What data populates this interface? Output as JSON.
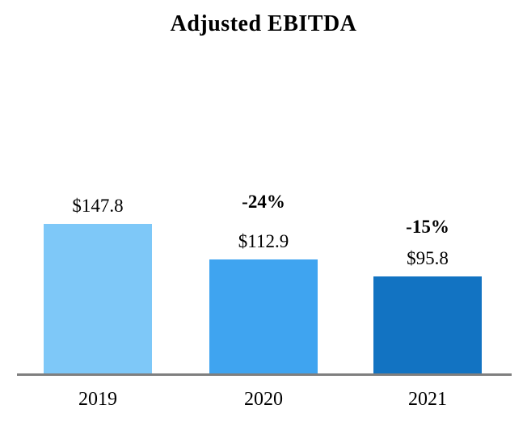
{
  "chart_data": {
    "type": "bar",
    "title": "Adjusted EBITDA",
    "categories": [
      "2019",
      "2020",
      "2021"
    ],
    "values": [
      147.8,
      112.9,
      95.8
    ],
    "bars": [
      {
        "category": "2019",
        "value": 147.8,
        "value_label": "$147.8",
        "change_label": "",
        "color": "#7EC8F8"
      },
      {
        "category": "2020",
        "value": 112.9,
        "value_label": "$112.9",
        "change_label": "-24%",
        "color": "#3FA4F0"
      },
      {
        "category": "2021",
        "value": 95.8,
        "value_label": "$95.8",
        "change_label": "-15%",
        "color": "#1273C2"
      }
    ],
    "xlabel": "",
    "ylabel": "",
    "ylim": [
      0,
      150
    ],
    "grid": false,
    "legend": false,
    "data_labels": true,
    "axis_line_color": "#7F7F7F",
    "background_color": "#FFFFFF",
    "title_color": "#000000"
  }
}
